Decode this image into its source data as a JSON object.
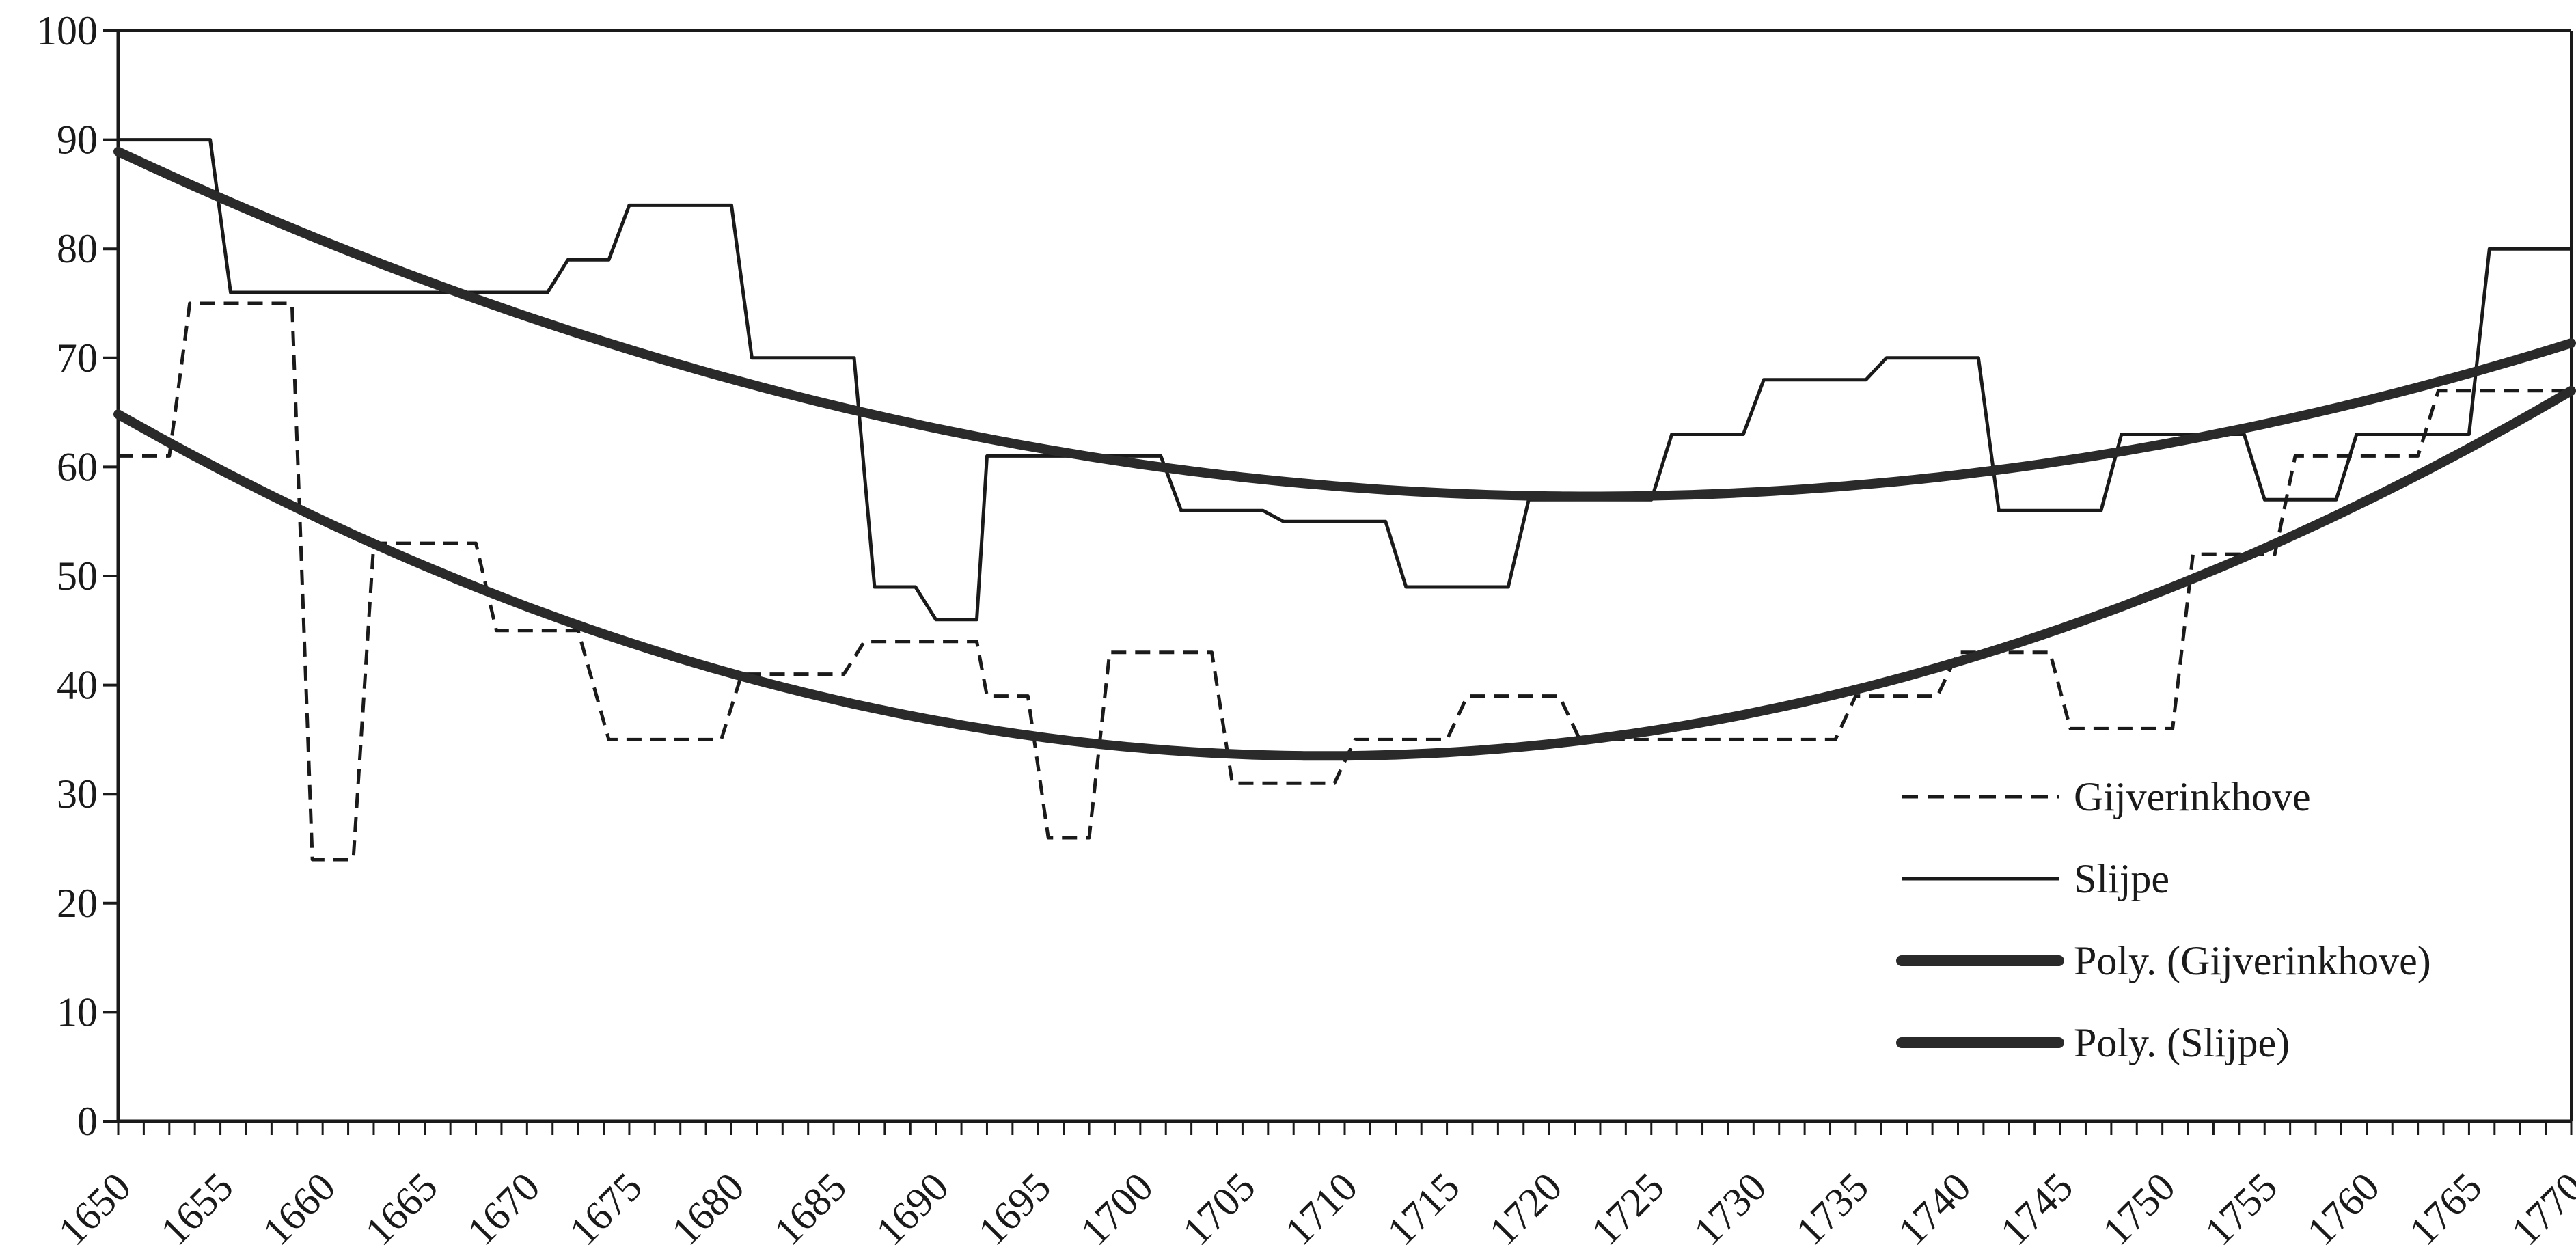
{
  "chart_data": {
    "type": "line",
    "title": "",
    "xlabel": "",
    "ylabel": "",
    "xlim": [
      1650,
      1770
    ],
    "ylim": [
      0,
      100
    ],
    "x_ticks": [
      1650,
      1655,
      1660,
      1665,
      1670,
      1675,
      1680,
      1685,
      1690,
      1695,
      1700,
      1705,
      1710,
      1715,
      1720,
      1725,
      1730,
      1735,
      1740,
      1745,
      1750,
      1755,
      1760,
      1765,
      1770
    ],
    "x_tick_labels": [
      "1650",
      "1655",
      "1660",
      "1665",
      "1670",
      "1675",
      "1680",
      "1685",
      "1690",
      "1695",
      "1700",
      "1705",
      "1710",
      "1715",
      "1720",
      "1725",
      "1730",
      "1735",
      "1740",
      "1745",
      "1750",
      "1755",
      "1760",
      "1765",
      "1770"
    ],
    "y_ticks": [
      0,
      10,
      20,
      30,
      40,
      50,
      60,
      70,
      80,
      90,
      100
    ],
    "y_tick_labels": [
      "0",
      "10",
      "20",
      "30",
      "40",
      "50",
      "60",
      "70",
      "80",
      "90",
      "100"
    ],
    "grid": false,
    "legend_position": "bottom-right",
    "series": [
      {
        "name": "Gijverinkhove",
        "style": "dashed",
        "color": "#1a1a1a",
        "points": [
          [
            1650,
            61
          ],
          [
            1652.5,
            61
          ],
          [
            1653.5,
            75
          ],
          [
            1658.5,
            75
          ],
          [
            1659.5,
            24
          ],
          [
            1661.5,
            24
          ],
          [
            1662.5,
            53
          ],
          [
            1667.5,
            53
          ],
          [
            1668.5,
            45
          ],
          [
            1672.5,
            45
          ],
          [
            1674,
            35
          ],
          [
            1679.5,
            35
          ],
          [
            1680.5,
            41
          ],
          [
            1685.5,
            41
          ],
          [
            1686.5,
            44
          ],
          [
            1692,
            44
          ],
          [
            1692.5,
            39
          ],
          [
            1694.5,
            39
          ],
          [
            1695.5,
            26
          ],
          [
            1697.5,
            26
          ],
          [
            1698.5,
            43
          ],
          [
            1703.5,
            43
          ],
          [
            1704.5,
            31
          ],
          [
            1709.5,
            31
          ],
          [
            1710.5,
            35
          ],
          [
            1715,
            35
          ],
          [
            1716,
            39
          ],
          [
            1720.5,
            39
          ],
          [
            1721.5,
            35
          ],
          [
            1734,
            35
          ],
          [
            1735,
            39
          ],
          [
            1739,
            39
          ],
          [
            1740,
            43
          ],
          [
            1744.5,
            43
          ],
          [
            1745.5,
            36
          ],
          [
            1750.5,
            36
          ],
          [
            1751.5,
            52
          ],
          [
            1755.5,
            52
          ],
          [
            1756.5,
            61
          ],
          [
            1762.5,
            61
          ],
          [
            1763.5,
            67
          ],
          [
            1770,
            67
          ]
        ]
      },
      {
        "name": "Slijpe",
        "style": "solid",
        "color": "#1a1a1a",
        "points": [
          [
            1650,
            90
          ],
          [
            1654.5,
            90
          ],
          [
            1655.5,
            76
          ],
          [
            1671,
            76
          ],
          [
            1672,
            79
          ],
          [
            1674,
            79
          ],
          [
            1675,
            84
          ],
          [
            1680,
            84
          ],
          [
            1681,
            70
          ],
          [
            1686,
            70
          ],
          [
            1687,
            49
          ],
          [
            1689,
            49
          ],
          [
            1690,
            46
          ],
          [
            1692,
            46
          ],
          [
            1692.5,
            61
          ],
          [
            1701,
            61
          ],
          [
            1702,
            56
          ],
          [
            1706,
            56
          ],
          [
            1707,
            55
          ],
          [
            1712,
            55
          ],
          [
            1713,
            49
          ],
          [
            1718,
            49
          ],
          [
            1719,
            57
          ],
          [
            1725,
            57
          ],
          [
            1726,
            63
          ],
          [
            1729.5,
            63
          ],
          [
            1730.5,
            68
          ],
          [
            1735.5,
            68
          ],
          [
            1736.5,
            70
          ],
          [
            1741,
            70
          ],
          [
            1742,
            56
          ],
          [
            1747,
            56
          ],
          [
            1748,
            63
          ],
          [
            1754,
            63
          ],
          [
            1755,
            57
          ],
          [
            1758.5,
            57
          ],
          [
            1759.5,
            63
          ],
          [
            1765,
            63
          ],
          [
            1766,
            80
          ],
          [
            1768.5,
            80
          ],
          [
            1770,
            80
          ]
        ]
      },
      {
        "name": "Poly. (Gijverinkhove)",
        "style": "trend",
        "color": "#2a2a2a",
        "poly": {
          "vertex_x": 1709,
          "vertex_y": 33.5,
          "a": 0.009
        },
        "range": [
          1650,
          1770
        ]
      },
      {
        "name": "Poly. (Slijpe)",
        "style": "trend",
        "color": "#2a2a2a",
        "poly": {
          "vertex_x": 1722,
          "vertex_y": 57.3,
          "a": 0.0061
        },
        "range": [
          1650,
          1770
        ]
      }
    ]
  }
}
